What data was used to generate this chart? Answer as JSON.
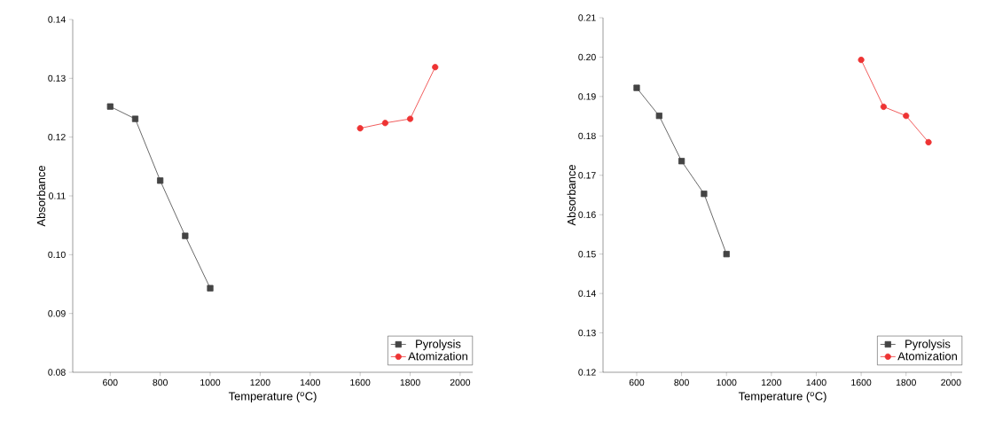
{
  "chart_data": [
    {
      "type": "line",
      "xlabel": "Temperature ($^{o}$C)",
      "ylabel": "Absorbance",
      "legend": "bottom right",
      "xlim": [
        450,
        2050
      ],
      "ylim": [
        0.08,
        0.14
      ],
      "xticks": [
        600,
        800,
        1000,
        1200,
        1400,
        1600,
        1800,
        2000
      ],
      "yticks": [
        {
          "value": 0.08,
          "label": "0.08"
        },
        {
          "value": 0.09,
          "label": "0.09"
        },
        {
          "value": 0.1,
          "label": "0.10"
        },
        {
          "value": 0.11,
          "label": "0.11"
        },
        {
          "value": 0.12,
          "label": "0.12"
        },
        {
          "value": 0.13,
          "label": "0.13"
        },
        {
          "value": 0.14,
          "label": "0.14"
        }
      ],
      "series": [
        {
          "name": "Pyrolysis",
          "color": "#444444",
          "marker": "square",
          "x": [
            600,
            700,
            800,
            900,
            1000
          ],
          "values": [
            0.1252,
            0.1231,
            0.1126,
            0.1032,
            0.0943
          ]
        },
        {
          "name": "Atomization",
          "color": "#ee3333",
          "marker": "circle",
          "x": [
            1600,
            1700,
            1800,
            1900
          ],
          "values": [
            0.1215,
            0.1224,
            0.1231,
            0.1319
          ]
        }
      ]
    },
    {
      "type": "line",
      "xlabel": "Temperature ($^{o}$C)",
      "ylabel": "Absorbance",
      "legend": "bottom right",
      "xlim": [
        450,
        2050
      ],
      "ylim": [
        0.12,
        0.21
      ],
      "xticks": [
        600,
        800,
        1000,
        1200,
        1400,
        1600,
        1800,
        2000
      ],
      "yticks": [
        {
          "value": 0.12,
          "label": "0.12"
        },
        {
          "value": 0.13,
          "label": "0.13"
        },
        {
          "value": 0.14,
          "label": "0.14"
        },
        {
          "value": 0.15,
          "label": "0.15"
        },
        {
          "value": 0.16,
          "label": "0.16"
        },
        {
          "value": 0.17,
          "label": "0.17"
        },
        {
          "value": 0.18,
          "label": "0.18"
        },
        {
          "value": 0.19,
          "label": "0.19"
        },
        {
          "value": 0.2,
          "label": "0.20"
        },
        {
          "value": 0.21,
          "label": "0.21"
        }
      ],
      "series": [
        {
          "name": "Pyrolysis",
          "color": "#444444",
          "marker": "square",
          "x": [
            600,
            700,
            800,
            900,
            1000
          ],
          "values": [
            0.1922,
            0.1851,
            0.1736,
            0.1653,
            0.15
          ]
        },
        {
          "name": "Atomization",
          "color": "#ee3333",
          "marker": "circle",
          "x": [
            1600,
            1700,
            1800,
            1900
          ],
          "values": [
            0.1993,
            0.1874,
            0.1851,
            0.1784
          ]
        }
      ]
    }
  ]
}
